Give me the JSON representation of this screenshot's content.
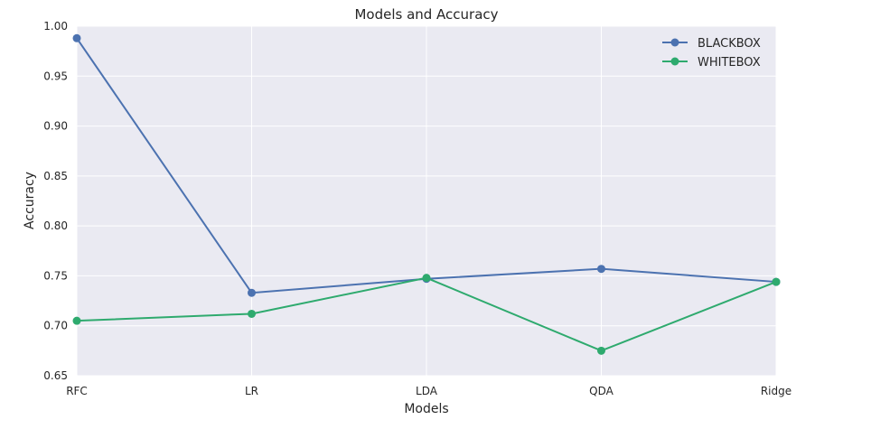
{
  "chart_data": {
    "type": "line",
    "title": "Models and Accuracy",
    "xlabel": "Models",
    "ylabel": "Accuracy",
    "categories": [
      "RFC",
      "LR",
      "LDA",
      "QDA",
      "Ridge"
    ],
    "ylim": [
      0.65,
      1.0
    ],
    "yticks": [
      "0.65",
      "0.70",
      "0.75",
      "0.80",
      "0.85",
      "0.90",
      "0.95",
      "1.00"
    ],
    "grid": true,
    "legend_position": "top-right",
    "series": [
      {
        "name": "BLACKBOX",
        "color": "#4c72b0",
        "values": [
          0.988,
          0.733,
          0.747,
          0.757,
          0.744
        ]
      },
      {
        "name": "WHITEBOX",
        "color": "#2eaa6e",
        "values": [
          0.705,
          0.712,
          0.748,
          0.675,
          0.744
        ]
      }
    ]
  }
}
